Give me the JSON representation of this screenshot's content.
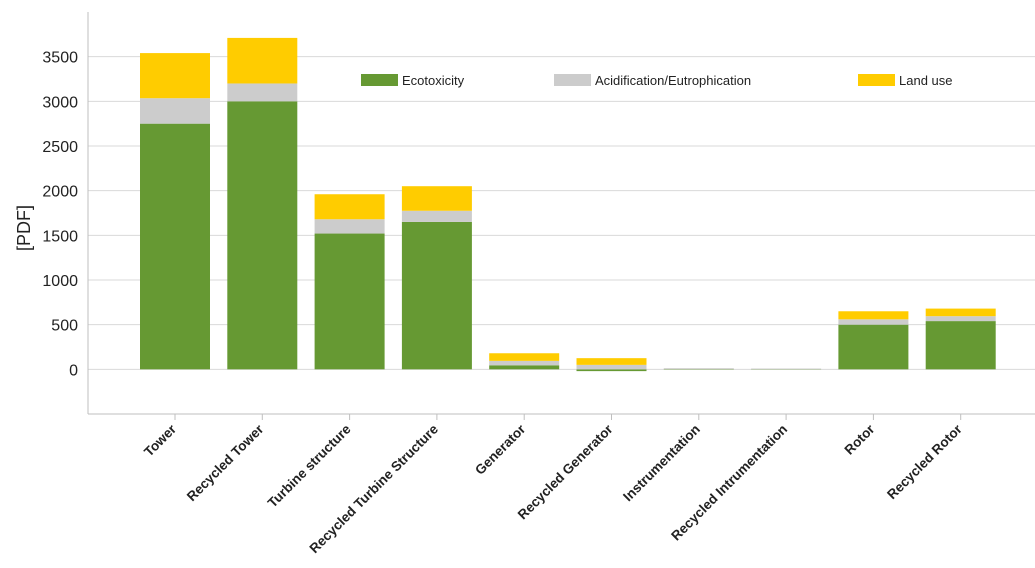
{
  "chart_data": {
    "type": "bar",
    "stacked": true,
    "categories": [
      "Tower",
      "Recycled Tower",
      "Turbine structure",
      "Recycled Turbine Structure",
      "Generator",
      "Recycled Generator",
      "Instrumentation",
      "Recycled Intrumentation",
      "Rotor",
      "Recycled Rotor"
    ],
    "series": [
      {
        "name": "Ecotoxicity",
        "color": "#669933",
        "values": [
          2750,
          3000,
          1520,
          1650,
          45,
          -20,
          5,
          3,
          500,
          540
        ]
      },
      {
        "name": "Acidification/Eutrophication",
        "color": "#cccccc",
        "values": [
          285,
          200,
          160,
          125,
          50,
          50,
          8,
          6,
          60,
          55
        ]
      },
      {
        "name": "Land use",
        "color": "#ffcc00",
        "values": [
          505,
          510,
          280,
          275,
          85,
          75,
          0,
          0,
          90,
          85
        ]
      }
    ],
    "ylabel": "[PDF]",
    "xlabel": "",
    "ylim": [
      -500,
      4000
    ],
    "yticks": [
      0,
      500,
      1000,
      1500,
      2000,
      2500,
      3000,
      3500
    ],
    "grid": true,
    "legend_position": "top"
  }
}
